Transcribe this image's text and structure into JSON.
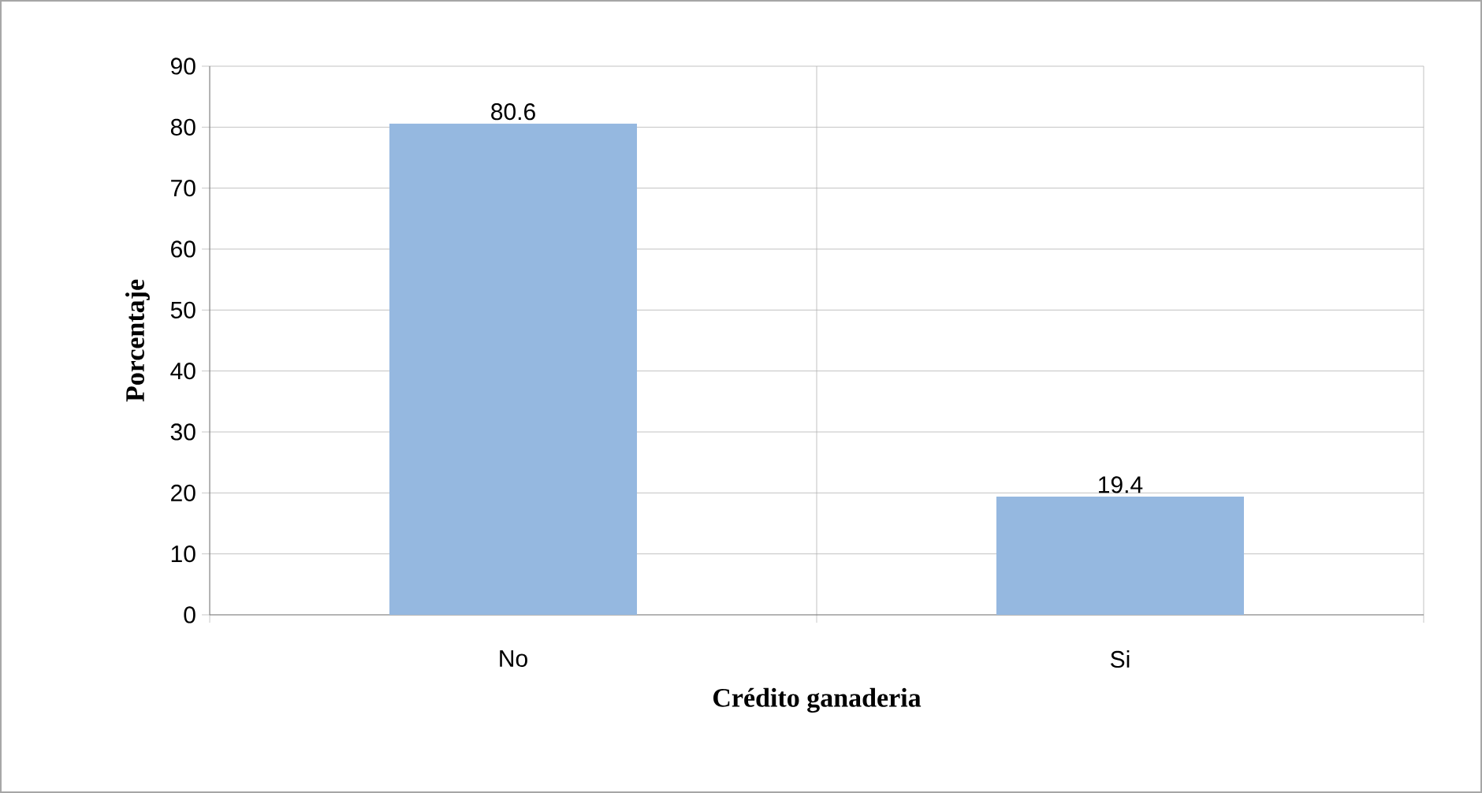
{
  "chart_data": {
    "type": "bar",
    "xlabel": "Crédito ganaderia",
    "ylabel": "Porcentaje",
    "categories": [
      "No",
      "Si"
    ],
    "values": [
      80.6,
      19.4
    ],
    "color": "#95b8e0",
    "ylim": [
      0,
      90
    ],
    "yticks": [
      0,
      10,
      20,
      30,
      40,
      50,
      60,
      70,
      80,
      90
    ],
    "grid": true,
    "data_labels": true
  }
}
